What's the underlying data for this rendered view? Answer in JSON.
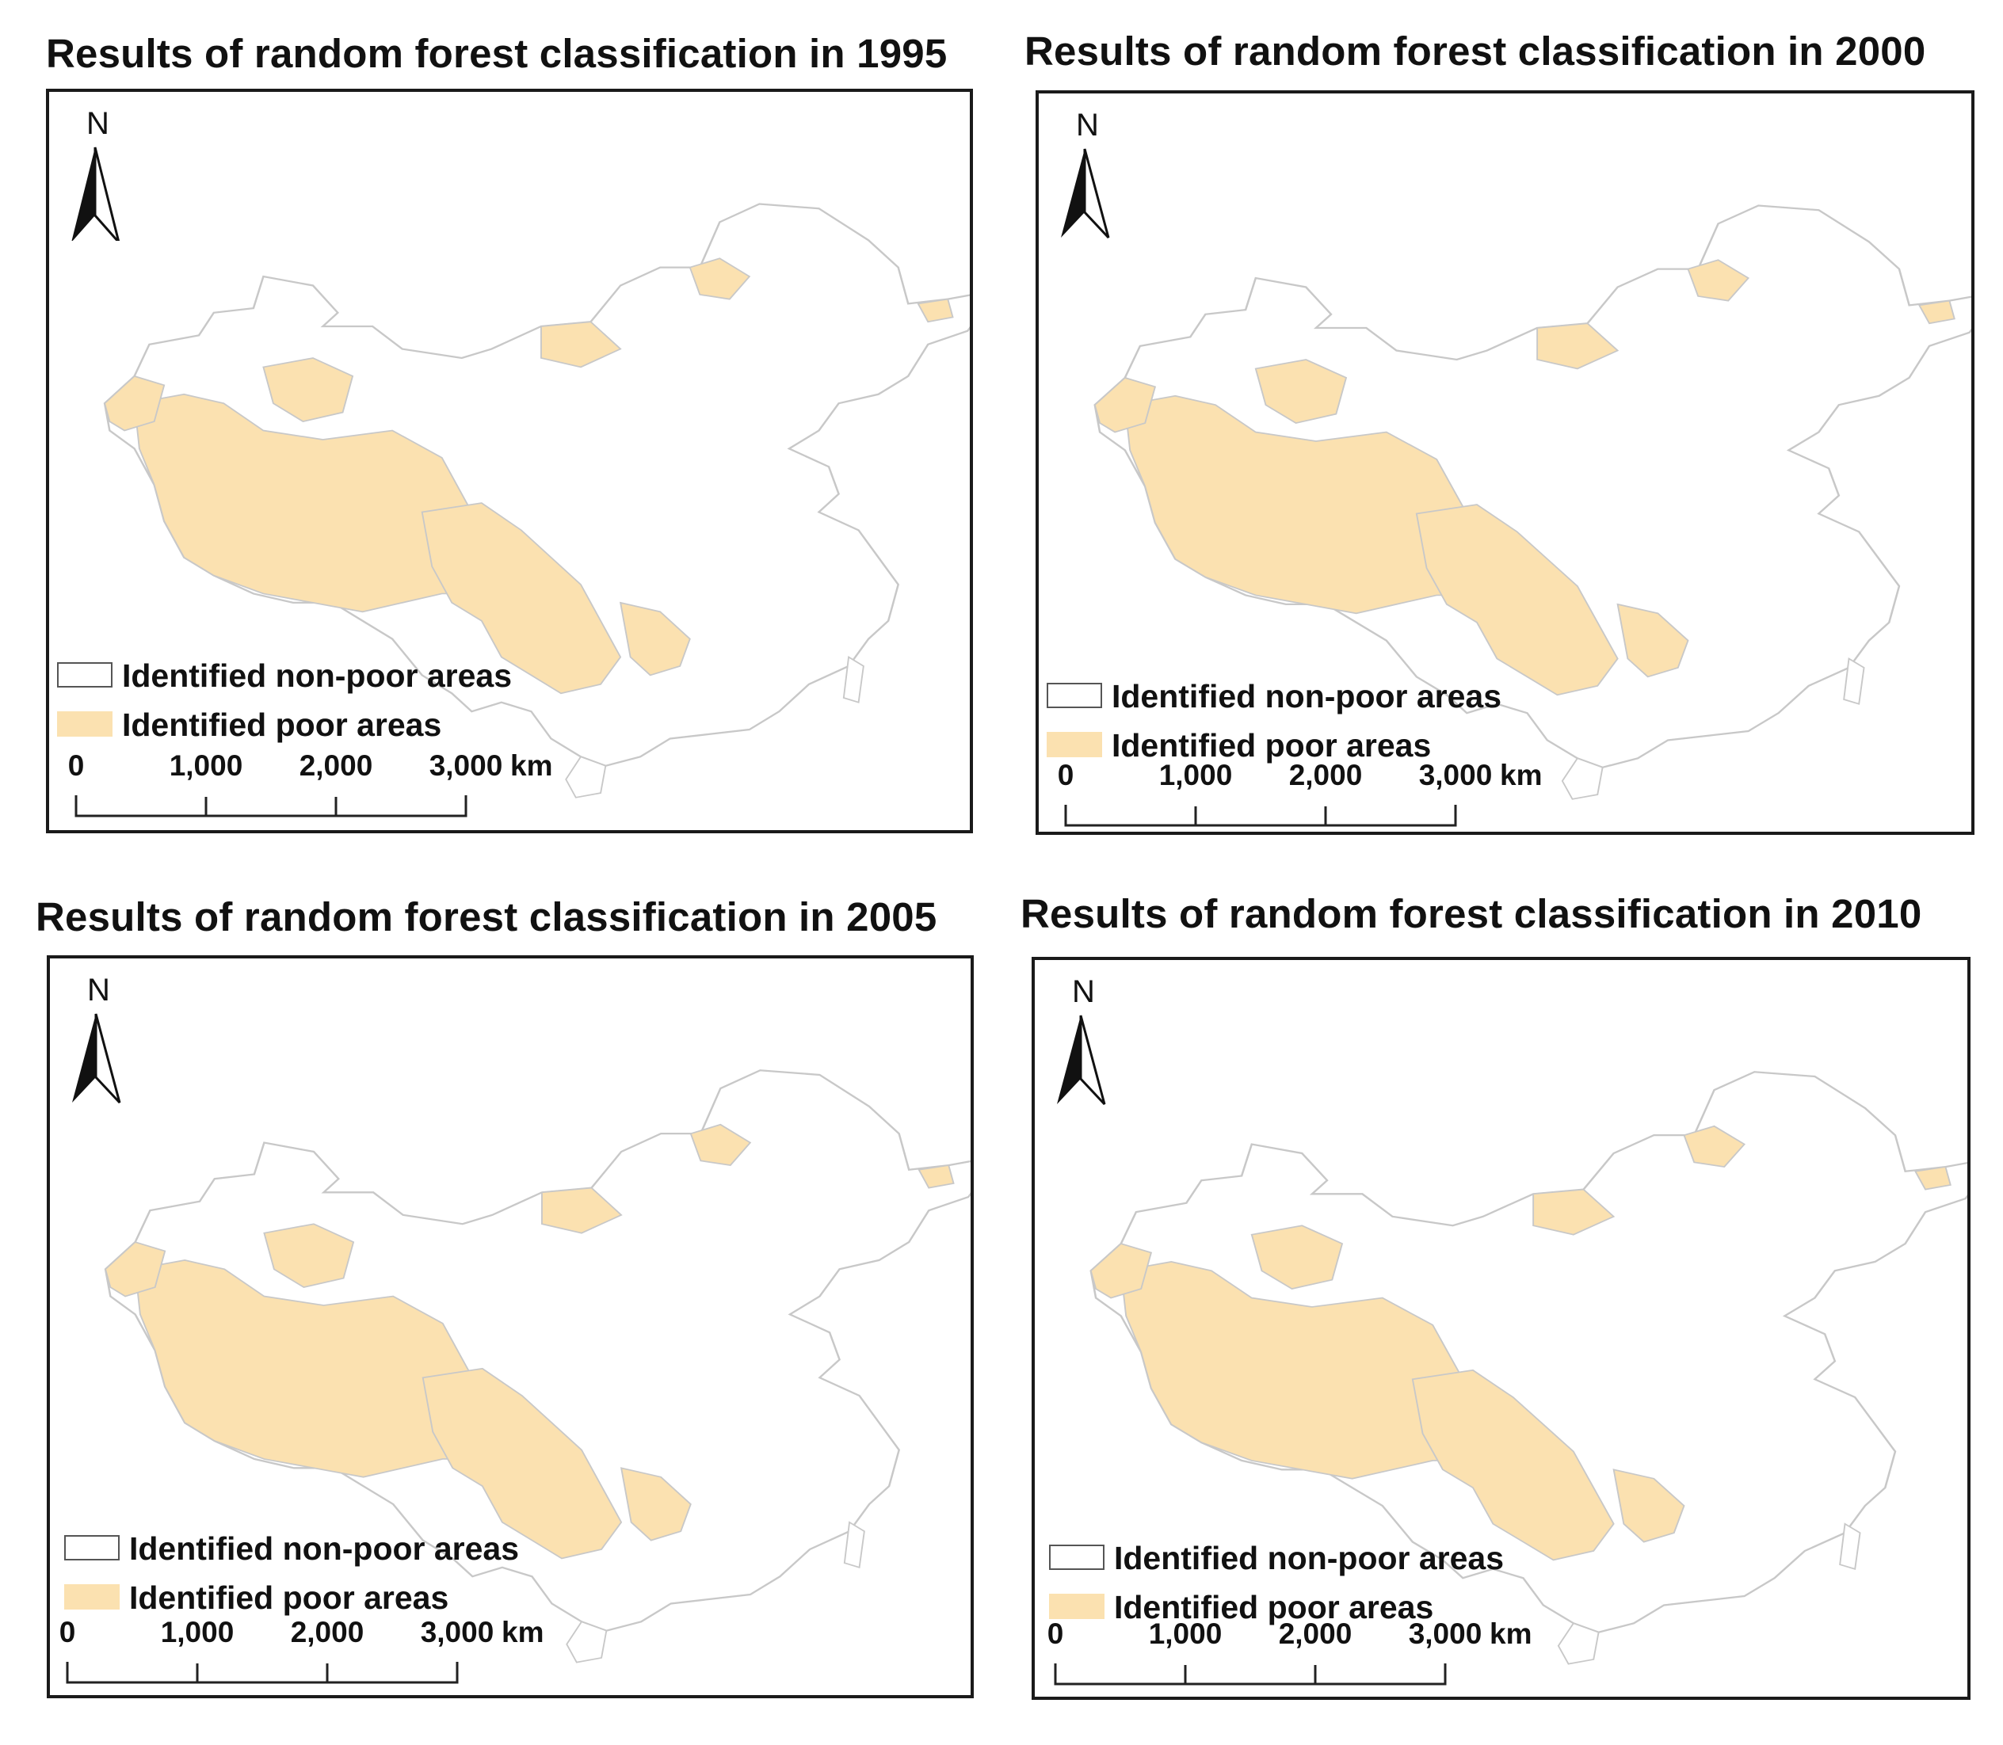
{
  "panels": [
    {
      "title": "Results of random forest classification in 1995",
      "year": "1995"
    },
    {
      "title": "Results of random forest classification in 2000",
      "year": "2000"
    },
    {
      "title": "Results of random forest classification in 2005",
      "year": "2005"
    },
    {
      "title": "Results of random forest classification in 2010",
      "year": "2010"
    }
  ],
  "north_label": "N",
  "legend": {
    "non_poor": "Identified non-poor areas",
    "poor": "Identified poor areas"
  },
  "scale": {
    "ticks": [
      "0",
      "1,000",
      "2,000",
      "3,000"
    ],
    "unit": "km"
  },
  "colors": {
    "poor": "#fbe1b0",
    "non_poor": "#ffffff",
    "boundary": "#c8c8c8",
    "frame": "#1a1a1a"
  },
  "icons": {
    "north_arrow": "north-arrow-icon"
  }
}
